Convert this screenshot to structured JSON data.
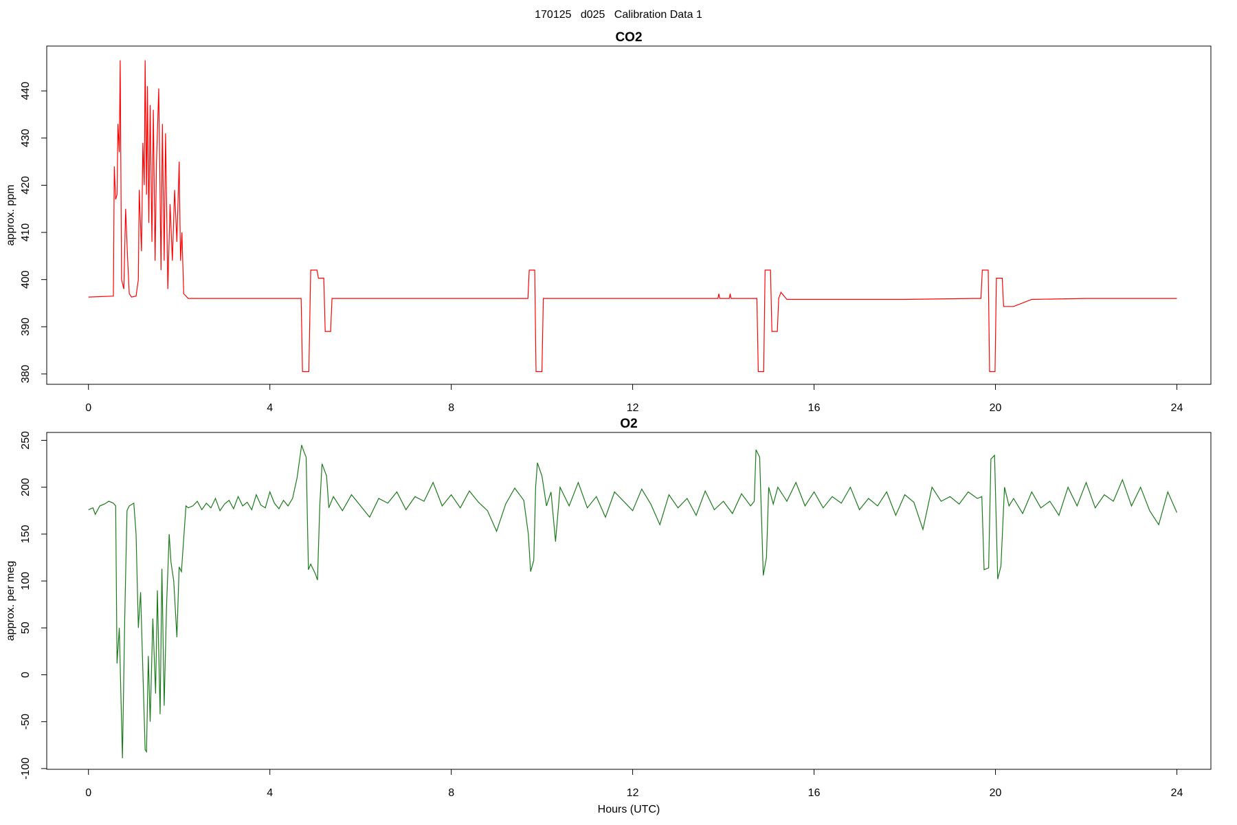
{
  "title": "170125   d025   Calibration Data 1",
  "chart_data": [
    {
      "type": "line",
      "title": "CO2",
      "ylabel": "approx. ppm",
      "xlim": [
        -0.92,
        24.75
      ],
      "ylim": [
        377.8,
        449.5
      ],
      "xticks": [
        0,
        4,
        8,
        12,
        16,
        20,
        24
      ],
      "yticks": [
        380,
        390,
        400,
        410,
        420,
        430,
        440
      ],
      "series": [
        {
          "color": "#ff0000",
          "x": [
            0,
            0.55,
            0.57,
            0.6,
            0.63,
            0.65,
            0.68,
            0.7,
            0.73,
            0.78,
            0.82,
            0.86,
            0.9,
            0.95,
            1.05,
            1.1,
            1.12,
            1.17,
            1.2,
            1.23,
            1.25,
            1.28,
            1.3,
            1.33,
            1.36,
            1.4,
            1.43,
            1.47,
            1.5,
            1.55,
            1.6,
            1.63,
            1.67,
            1.7,
            1.75,
            1.8,
            1.85,
            1.9,
            1.95,
            2.0,
            2.03,
            2.06,
            2.1,
            2.15,
            2.2,
            3,
            4,
            4.69,
            4.72,
            4.86,
            4.9,
            5.04,
            5.07,
            5.19,
            5.22,
            5.34,
            5.37,
            7,
            9.69,
            9.72,
            9.84,
            9.87,
            10.0,
            10.03,
            12,
            13.88,
            13.9,
            13.92,
            14.13,
            14.15,
            14.17,
            14.74,
            14.77,
            14.89,
            14.92,
            15.04,
            15.07,
            15.19,
            15.22,
            15.27,
            15.4,
            18,
            19.5,
            19.68,
            19.71,
            19.84,
            19.87,
            19.99,
            20.02,
            20.15,
            20.18,
            20.4,
            20.8,
            22,
            24
          ],
          "values": [
            396.3,
            396.5,
            424,
            417,
            418,
            433,
            427,
            446.5,
            400,
            398,
            415,
            405,
            397,
            396.3,
            396.5,
            400,
            419,
            406,
            429,
            420,
            446.5,
            418,
            441,
            412,
            437,
            408,
            436,
            404,
            425,
            440.5,
            402,
            433,
            404,
            431,
            398,
            416,
            404,
            419,
            408,
            425,
            404,
            410,
            397,
            396.5,
            396,
            396,
            396,
            396,
            380.5,
            380.5,
            402,
            402,
            400.3,
            400.3,
            389,
            389,
            396,
            396,
            396,
            402,
            402,
            380.5,
            380.5,
            396,
            396,
            396,
            397,
            396,
            396,
            397,
            396,
            396,
            380.5,
            380.5,
            402,
            402,
            389,
            389,
            396,
            397.3,
            395.8,
            395.8,
            396,
            396,
            402,
            402,
            380.5,
            380.5,
            400.3,
            400.3,
            394.3,
            394.3,
            395.8,
            396,
            396
          ]
        }
      ]
    },
    {
      "type": "line",
      "title": "O2",
      "ylabel": "approx. per meg",
      "xlabel": "Hours (UTC)",
      "xlim": [
        -0.92,
        24.75
      ],
      "ylim": [
        -100.8,
        258.4
      ],
      "xticks": [
        0,
        4,
        8,
        12,
        16,
        20,
        24
      ],
      "yticks": [
        -100,
        -50,
        0,
        50,
        100,
        150,
        200,
        250
      ],
      "series": [
        {
          "color": "#1a7a1a",
          "x": [
            0,
            0.1,
            0.15,
            0.25,
            0.35,
            0.45,
            0.55,
            0.6,
            0.63,
            0.68,
            0.72,
            0.75,
            0.8,
            0.85,
            0.9,
            1.0,
            1.05,
            1.1,
            1.15,
            1.25,
            1.28,
            1.32,
            1.36,
            1.42,
            1.48,
            1.52,
            1.58,
            1.62,
            1.67,
            1.72,
            1.78,
            1.82,
            1.88,
            1.95,
            2.0,
            2.05,
            2.15,
            2.2,
            2.3,
            2.4,
            2.5,
            2.6,
            2.7,
            2.8,
            2.9,
            3.0,
            3.1,
            3.2,
            3.3,
            3.4,
            3.5,
            3.6,
            3.7,
            3.8,
            3.9,
            4.0,
            4.1,
            4.2,
            4.3,
            4.4,
            4.5,
            4.6,
            4.7,
            4.75,
            4.8,
            4.85,
            4.9,
            5.0,
            5.05,
            5.1,
            5.15,
            5.25,
            5.3,
            5.4,
            5.6,
            5.8,
            6.0,
            6.2,
            6.4,
            6.6,
            6.8,
            7.0,
            7.2,
            7.4,
            7.6,
            7.8,
            8.0,
            8.2,
            8.4,
            8.6,
            8.8,
            9.0,
            9.2,
            9.4,
            9.6,
            9.7,
            9.75,
            9.82,
            9.86,
            9.9,
            10.0,
            10.1,
            10.2,
            10.3,
            10.4,
            10.6,
            10.8,
            11.0,
            11.2,
            11.4,
            11.6,
            11.8,
            12.0,
            12.2,
            12.4,
            12.6,
            12.8,
            13.0,
            13.2,
            13.4,
            13.6,
            13.8,
            14.0,
            14.2,
            14.4,
            14.6,
            14.68,
            14.72,
            14.8,
            14.88,
            14.95,
            15.0,
            15.1,
            15.2,
            15.4,
            15.6,
            15.8,
            16.0,
            16.2,
            16.4,
            16.6,
            16.8,
            17.0,
            17.2,
            17.4,
            17.6,
            17.8,
            18.0,
            18.2,
            18.4,
            18.6,
            18.8,
            19.0,
            19.2,
            19.4,
            19.6,
            19.7,
            19.75,
            19.85,
            19.9,
            19.98,
            20.05,
            20.12,
            20.2,
            20.3,
            20.4,
            20.6,
            20.8,
            21.0,
            21.2,
            21.4,
            21.6,
            21.8,
            22.0,
            22.2,
            22.4,
            22.6,
            22.8,
            23.0,
            23.2,
            23.4,
            23.6,
            23.8,
            24.0
          ],
          "values": [
            176,
            178,
            171,
            180,
            182,
            185,
            183,
            180,
            12,
            50,
            -30,
            -89,
            60,
            175,
            180,
            183,
            150,
            50,
            88,
            -80,
            -82,
            20,
            -50,
            60,
            -20,
            90,
            -42,
            113,
            -33,
            70,
            150,
            120,
            100,
            40,
            115,
            110,
            180,
            178,
            180,
            185,
            176,
            183,
            178,
            188,
            175,
            182,
            186,
            177,
            190,
            180,
            184,
            176,
            192,
            181,
            178,
            195,
            183,
            177,
            186,
            180,
            188,
            210,
            245,
            238,
            232,
            112,
            118,
            108,
            101,
            180,
            225,
            212,
            178,
            190,
            175,
            192,
            180,
            168,
            188,
            183,
            195,
            176,
            190,
            185,
            205,
            180,
            192,
            178,
            196,
            184,
            175,
            153,
            182,
            199,
            186,
            150,
            110,
            122,
            200,
            226,
            212,
            180,
            195,
            142,
            200,
            180,
            205,
            178,
            190,
            168,
            195,
            185,
            175,
            198,
            182,
            160,
            192,
            178,
            188,
            170,
            196,
            176,
            185,
            172,
            193,
            180,
            185,
            240,
            232,
            106,
            125,
            200,
            182,
            200,
            185,
            205,
            180,
            195,
            178,
            190,
            183,
            200,
            176,
            188,
            180,
            195,
            170,
            192,
            184,
            155,
            200,
            185,
            190,
            182,
            195,
            188,
            190,
            112,
            114,
            230,
            234,
            102,
            116,
            200,
            180,
            188,
            172,
            195,
            178,
            185,
            170,
            200,
            180,
            205,
            178,
            192,
            185,
            208,
            180,
            200,
            175,
            160,
            195,
            173
          ]
        }
      ]
    }
  ]
}
